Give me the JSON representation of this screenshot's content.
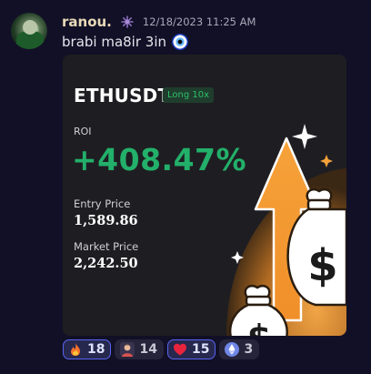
{
  "message": {
    "username": "ranou.",
    "timestamp": "12/18/2023 11:25 AM",
    "text": "brabi ma8ir 3in"
  },
  "card": {
    "pair": "ETHUSDT",
    "leverage": "Long 10x",
    "roi_label": "ROI",
    "roi_value": "+408.47%",
    "entry_label": "Entry Price",
    "entry_value": "1,589.86",
    "market_label": "Market Price",
    "market_value": "2,242.50"
  },
  "reactions": [
    {
      "icon": "fire-icon",
      "count": "18"
    },
    {
      "icon": "person-emoji-icon",
      "count": "14"
    },
    {
      "icon": "heart-icon",
      "count": "15"
    },
    {
      "icon": "ethereum-icon",
      "count": "3"
    }
  ],
  "colors": {
    "background": "#121026",
    "username": "#e8d9b8",
    "roi": "#23b06a",
    "card": "#1e1e22",
    "accent": "#5865f2"
  }
}
